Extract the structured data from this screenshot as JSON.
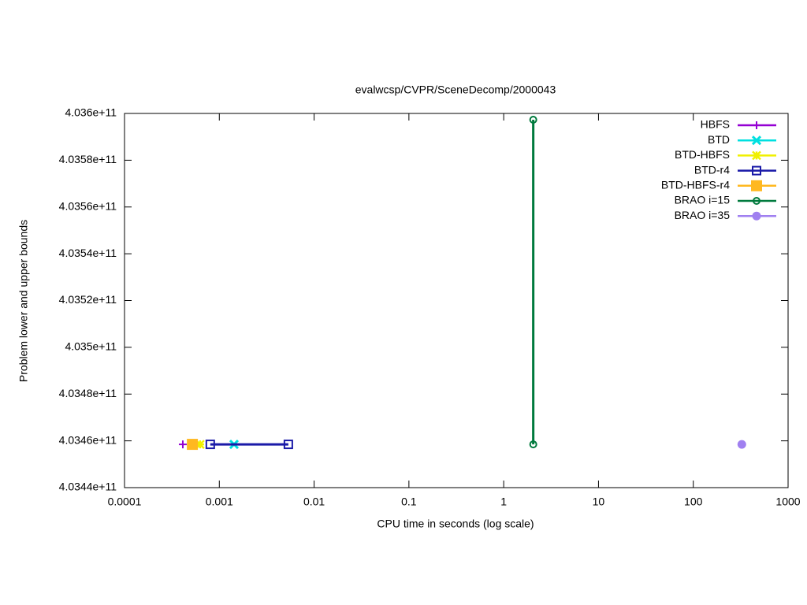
{
  "chart_data": {
    "type": "line",
    "title": "evalwcsp/CVPR/SceneDecomp/2000043",
    "x_label": "CPU time in seconds (log scale)",
    "y_label": "Problem lower and upper bounds",
    "xscale": "log",
    "xlim": [
      0.0001,
      1000
    ],
    "xticks": [
      0.0001,
      0.001,
      0.01,
      0.1,
      1,
      10,
      100,
      1000
    ],
    "ylim": [
      403440000000,
      403600000000
    ],
    "yticks": [
      {
        "value": 403440000000,
        "label": "4.0344e+11"
      },
      {
        "value": 403460000000,
        "label": "4.0346e+11"
      },
      {
        "value": 403480000000,
        "label": "4.0348e+11"
      },
      {
        "value": 403500000000,
        "label": "4.035e+11"
      },
      {
        "value": 403520000000,
        "label": "4.0352e+11"
      },
      {
        "value": 403540000000,
        "label": "4.0354e+11"
      },
      {
        "value": 403560000000,
        "label": "4.0356e+11"
      },
      {
        "value": 403580000000,
        "label": "4.0358e+11"
      },
      {
        "value": 403600000000,
        "label": "4.036e+11"
      }
    ],
    "legend": "top-right",
    "series": [
      {
        "name": "HBFS",
        "color": "#9400d3",
        "marker": "plus",
        "x": [
          0.000412
        ],
        "values": [
          403458500000
        ]
      },
      {
        "name": "BTD",
        "color": "#00e0e0",
        "marker": "cross",
        "x": [
          0.00143
        ],
        "values": [
          403458500000
        ]
      },
      {
        "name": "BTD-HBFS",
        "color": "#f0f000",
        "marker": "star",
        "x": [
          0.000627
        ],
        "values": [
          403458500000
        ]
      },
      {
        "name": "BTD-r4",
        "color": "#1a1aa8",
        "marker": "open-square",
        "x": [
          0.000803,
          0.00535
        ],
        "values": [
          403458500000,
          403458500000
        ]
      },
      {
        "name": "BTD-HBFS-r4",
        "color": "#ffb820",
        "marker": "filled-square",
        "x": [
          0.00052
        ],
        "values": [
          403458500000
        ]
      },
      {
        "name": "BRAO i=15",
        "color": "#007a3d",
        "marker": "open-circle",
        "x": [
          2.05,
          2.05
        ],
        "values": [
          403597300000,
          403458500000
        ]
      },
      {
        "name": "BRAO i=35",
        "color": "#a080f0",
        "marker": "filled-circle",
        "x": [
          325
        ],
        "values": [
          403458500000
        ]
      }
    ]
  }
}
